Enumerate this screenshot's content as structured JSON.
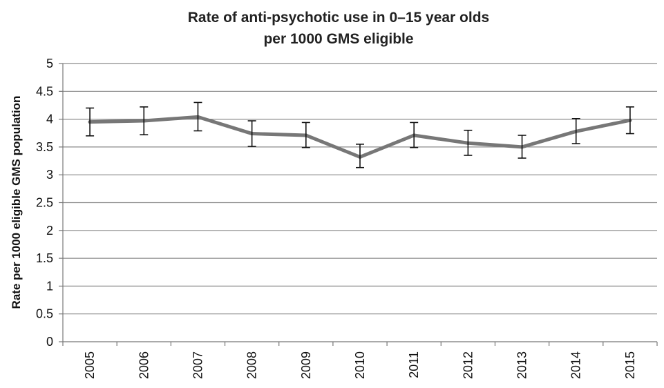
{
  "chart_data": {
    "type": "line",
    "title_lines": [
      "Rate of anti-psychotic use in 0–15 year olds",
      "per 1000 GMS eligible"
    ],
    "xlabel": "",
    "ylabel": "Rate per 1000 eligible  GMS  population",
    "categories": [
      "2005",
      "2006",
      "2007",
      "2008",
      "2009",
      "2010",
      "2011",
      "2012",
      "2013",
      "2014",
      "2015"
    ],
    "yticks": [
      "0",
      "0.5",
      "1",
      "1.5",
      "2",
      "2.5",
      "3",
      "3.5",
      "4",
      "4.5",
      "5"
    ],
    "ylim": [
      0,
      5
    ],
    "grid": true,
    "series": [
      {
        "values": [
          3.95,
          3.97,
          4.04,
          3.74,
          3.71,
          3.32,
          3.71,
          3.57,
          3.5,
          3.78,
          3.98
        ],
        "error_low": [
          3.7,
          3.72,
          3.79,
          3.51,
          3.49,
          3.13,
          3.49,
          3.35,
          3.3,
          3.56,
          3.74
        ],
        "error_high": [
          4.2,
          4.22,
          4.3,
          3.97,
          3.94,
          3.55,
          3.94,
          3.8,
          3.71,
          4.01,
          4.22
        ],
        "color": "#777777"
      }
    ]
  }
}
